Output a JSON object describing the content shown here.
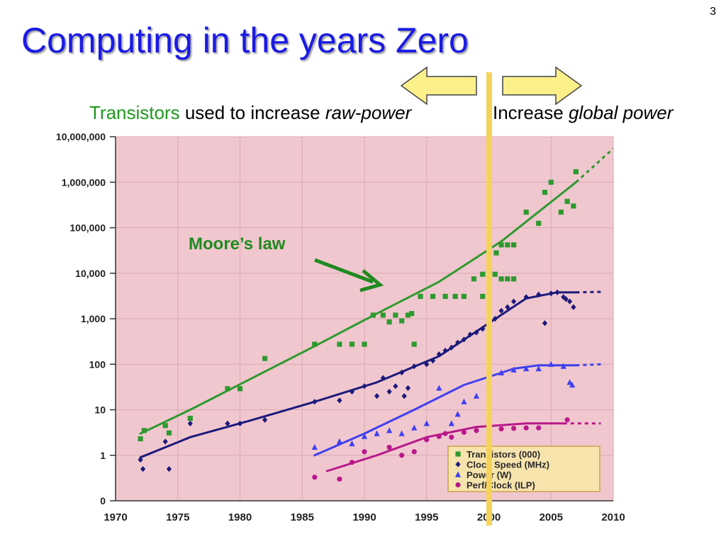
{
  "slide": {
    "page_number": "3",
    "title": "Computing in the years Zero",
    "subtitle_left": {
      "highlight": "Transistors",
      "text": " used to increase ",
      "emphasis": "raw-power"
    },
    "subtitle_right": {
      "text": "Increase ",
      "emphasis": "global power"
    },
    "annotation": "Moore’s law",
    "colors": {
      "title": "#1a1ae6",
      "highlight": "#1f9a1f",
      "marker_line": "#f5d35a",
      "arrow_fill": "#fbf08a",
      "plot_background": "#f1c7cf"
    }
  },
  "chart_data": {
    "type": "scatter",
    "y_scale": "log",
    "xlim": [
      1970,
      2010
    ],
    "y_ticks": [
      {
        "value": 0.1,
        "label": "0"
      },
      {
        "value": 1,
        "label": "1"
      },
      {
        "value": 10,
        "label": "10"
      },
      {
        "value": 100,
        "label": "100"
      },
      {
        "value": 1000,
        "label": "1,000"
      },
      {
        "value": 10000,
        "label": "10,000"
      },
      {
        "value": 100000,
        "label": "100,000"
      },
      {
        "value": 1000000,
        "label": "1,000,000"
      },
      {
        "value": 10000000,
        "label": "10,000,000"
      }
    ],
    "x_ticks": [
      1970,
      1975,
      1980,
      1985,
      1990,
      1995,
      2000,
      2005,
      2010
    ],
    "grid": true,
    "legend_position": "bottom-right",
    "marker_line_x": 2001.5,
    "series": [
      {
        "name": "Transistors (000)",
        "color": "#2e9a2e",
        "marker": "square",
        "points": [
          [
            1972,
            2.3
          ],
          [
            1972.3,
            3.5
          ],
          [
            1974,
            4.5
          ],
          [
            1974.3,
            3.1
          ],
          [
            1976,
            6.5
          ],
          [
            1979,
            29
          ],
          [
            1980,
            29
          ],
          [
            1982,
            134
          ],
          [
            1986,
            275
          ],
          [
            1988,
            275
          ],
          [
            1989,
            275
          ],
          [
            1990,
            275
          ],
          [
            1990.7,
            1200
          ],
          [
            1991.5,
            1200
          ],
          [
            1992,
            850
          ],
          [
            1992.5,
            1200
          ],
          [
            1993,
            900
          ],
          [
            1993.5,
            1200
          ],
          [
            1993.8,
            1300
          ],
          [
            1994,
            275
          ],
          [
            1994.5,
            3100
          ],
          [
            1995.5,
            3100
          ],
          [
            1996.5,
            3100
          ],
          [
            1997.3,
            3100
          ],
          [
            1998,
            3100
          ],
          [
            1999.5,
            3100
          ],
          [
            1998.8,
            7500
          ],
          [
            1999.5,
            9500
          ],
          [
            2000,
            9500
          ],
          [
            2000.5,
            9500
          ],
          [
            2001,
            7500
          ],
          [
            2001.5,
            7500
          ],
          [
            2002,
            7500
          ],
          [
            2000,
            28000
          ],
          [
            2000.6,
            28000
          ],
          [
            2001,
            42000
          ],
          [
            2001.5,
            42000
          ],
          [
            2002,
            42000
          ],
          [
            2003,
            220000
          ],
          [
            2004,
            125000
          ],
          [
            2004.5,
            600000
          ],
          [
            2005,
            1000000
          ],
          [
            2005.8,
            220000
          ],
          [
            2006.3,
            380000
          ],
          [
            2006.8,
            300000
          ],
          [
            2007,
            1700000
          ]
        ],
        "trend": [
          [
            1972,
            3
          ],
          [
            1976,
            10
          ],
          [
            1981,
            50
          ],
          [
            1986,
            250
          ],
          [
            1991,
            1300
          ],
          [
            1996,
            6500
          ],
          [
            2001,
            50000
          ],
          [
            2007,
            1000000
          ],
          [
            2010,
            5500000
          ]
        ]
      },
      {
        "name": "Clock Speed (MHz)",
        "color": "#1a1a7a",
        "marker": "diamond",
        "points": [
          [
            1972,
            0.8
          ],
          [
            1972.2,
            0.5
          ],
          [
            1974,
            2
          ],
          [
            1974.3,
            0.5
          ],
          [
            1976,
            5
          ],
          [
            1979,
            5
          ],
          [
            1980,
            5
          ],
          [
            1982,
            6
          ],
          [
            1986,
            15
          ],
          [
            1988,
            16
          ],
          [
            1989,
            25
          ],
          [
            1990,
            33
          ],
          [
            1991,
            20
          ],
          [
            1991.5,
            50
          ],
          [
            1992,
            25
          ],
          [
            1992.5,
            33
          ],
          [
            1993,
            66
          ],
          [
            1993.5,
            30
          ],
          [
            1993.2,
            20
          ],
          [
            1994,
            90
          ],
          [
            1995,
            100
          ],
          [
            1995.5,
            120
          ],
          [
            1996,
            166
          ],
          [
            1996.5,
            200
          ],
          [
            1997,
            233
          ],
          [
            1997.5,
            300
          ],
          [
            1998,
            350
          ],
          [
            1998.5,
            450
          ],
          [
            1999,
            500
          ],
          [
            1999.5,
            600
          ],
          [
            2000,
            800
          ],
          [
            2000.5,
            1000
          ],
          [
            2001,
            1500
          ],
          [
            2001.5,
            1800
          ],
          [
            2002,
            2400
          ],
          [
            2003,
            3000
          ],
          [
            2004,
            3400
          ],
          [
            2004.5,
            800
          ],
          [
            2005,
            3600
          ],
          [
            2005.5,
            3800
          ],
          [
            2006,
            3000
          ],
          [
            2006.5,
            2400
          ],
          [
            2006.8,
            1800
          ],
          [
            2006.2,
            2700
          ]
        ],
        "trend": [
          [
            1972,
            0.9
          ],
          [
            1976,
            2.5
          ],
          [
            1981,
            6
          ],
          [
            1986,
            15
          ],
          [
            1991,
            40
          ],
          [
            1996,
            150
          ],
          [
            2000,
            800
          ],
          [
            2003,
            2800
          ],
          [
            2005.5,
            3800
          ],
          [
            2007,
            3800
          ],
          [
            2009,
            3900
          ]
        ]
      },
      {
        "name": "Power (W)",
        "color": "#4040ee",
        "marker": "triangle",
        "points": [
          [
            1986,
            1.5
          ],
          [
            1988,
            2
          ],
          [
            1989,
            1.8
          ],
          [
            1990,
            2.6
          ],
          [
            1991,
            3
          ],
          [
            1992,
            3.5
          ],
          [
            1993,
            3
          ],
          [
            1994,
            4
          ],
          [
            1995,
            5
          ],
          [
            1996,
            30
          ],
          [
            1997,
            5
          ],
          [
            1997.5,
            8
          ],
          [
            1998,
            15
          ],
          [
            1999,
            20
          ],
          [
            2000,
            40
          ],
          [
            2001,
            65
          ],
          [
            2002,
            75
          ],
          [
            2003,
            80
          ],
          [
            2004,
            80
          ],
          [
            2005,
            100
          ],
          [
            2006,
            90
          ],
          [
            2006.5,
            40
          ],
          [
            2006.7,
            35
          ]
        ],
        "trend": [
          [
            1986,
            1
          ],
          [
            1990,
            3
          ],
          [
            1994,
            10
          ],
          [
            1998,
            35
          ],
          [
            2002,
            80
          ],
          [
            2004,
            95
          ],
          [
            2007,
            95
          ],
          [
            2009,
            100
          ]
        ]
      },
      {
        "name": "Perf/Clock (ILP)",
        "color": "#b8198a",
        "marker": "circle",
        "points": [
          [
            1986,
            0.33
          ],
          [
            1988,
            0.3
          ],
          [
            1989,
            0.7
          ],
          [
            1990,
            1.2
          ],
          [
            1992,
            1.5
          ],
          [
            1993,
            1
          ],
          [
            1994,
            1.2
          ],
          [
            1995,
            2.2
          ],
          [
            1996,
            2.6
          ],
          [
            1996.5,
            3
          ],
          [
            1997,
            2.5
          ],
          [
            1998,
            3.2
          ],
          [
            1999,
            3.5
          ],
          [
            2000,
            3.7
          ],
          [
            2001,
            3.8
          ],
          [
            2002,
            3.9
          ],
          [
            2003,
            4
          ],
          [
            2004,
            4
          ],
          [
            2006.3,
            6
          ]
        ],
        "trend": [
          [
            1987,
            0.45
          ],
          [
            1991,
            1
          ],
          [
            1995,
            2.5
          ],
          [
            1999,
            4.2
          ],
          [
            2003,
            5
          ],
          [
            2006,
            5
          ],
          [
            2009,
            5
          ]
        ]
      }
    ]
  }
}
